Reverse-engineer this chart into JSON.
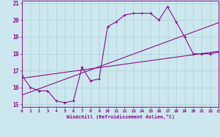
{
  "title": "",
  "xlabel": "Windchill (Refroidissement éolien,°C)",
  "ylabel": "",
  "bg_color": "#cce8ee",
  "grid_color": "#aaccd4",
  "line_color": "#880088",
  "xlim": [
    0,
    23
  ],
  "ylim": [
    14.85,
    21.15
  ],
  "xticks": [
    0,
    1,
    2,
    3,
    4,
    5,
    6,
    7,
    8,
    9,
    10,
    11,
    12,
    13,
    14,
    15,
    16,
    17,
    18,
    19,
    20,
    21,
    22,
    23
  ],
  "yticks": [
    15,
    16,
    17,
    18,
    19,
    20,
    21
  ],
  "main_x": [
    0,
    1,
    2,
    3,
    4,
    5,
    6,
    7,
    8,
    9,
    10,
    11,
    12,
    13,
    14,
    15,
    16,
    17,
    18,
    19,
    20,
    21,
    22,
    23
  ],
  "main_y": [
    16.7,
    16.0,
    15.8,
    15.8,
    15.2,
    15.1,
    15.2,
    17.2,
    16.4,
    16.5,
    19.6,
    19.9,
    20.3,
    20.4,
    20.4,
    20.4,
    20.0,
    20.8,
    19.9,
    19.0,
    18.0,
    18.0,
    18.0,
    18.1
  ],
  "trend1_x": [
    0,
    23
  ],
  "trend1_y": [
    15.55,
    19.85
  ],
  "trend2_x": [
    0,
    23
  ],
  "trend2_y": [
    16.55,
    18.15
  ]
}
